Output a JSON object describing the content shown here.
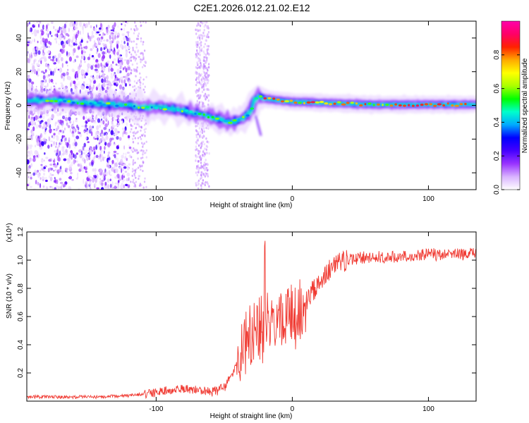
{
  "figure": {
    "title": "C2E1.2026.012.21.02.E12"
  },
  "chart_data": [
    {
      "type": "heatmap",
      "name": "spectrogram",
      "xlabel": "Height of straight line (km)",
      "ylabel": "Frequency (Hz)",
      "xlim": [
        -195,
        135
      ],
      "ylim": [
        -50,
        50
      ],
      "xticks": [
        -100,
        0,
        100
      ],
      "yticks": [
        -40,
        -20,
        0,
        20,
        40
      ],
      "grid": false,
      "signal_trace": {
        "x": [
          -195,
          -180,
          -170,
          -160,
          -150,
          -140,
          -130,
          -120,
          -110,
          -100,
          -90,
          -80,
          -70,
          -60,
          -50,
          -45,
          -40,
          -35,
          -30,
          -28,
          -25,
          -20,
          -10,
          0,
          10,
          20,
          40,
          60,
          80,
          100,
          120,
          135
        ],
        "freq_hz": [
          3,
          3,
          3,
          2,
          1.5,
          1,
          0.5,
          0,
          -1,
          -1,
          -2,
          -3,
          -5,
          -7,
          -9,
          -10,
          -9,
          -7,
          -3,
          3,
          5,
          4,
          3,
          2,
          2,
          1.5,
          1,
          0.5,
          0.5,
          0.5,
          0.5,
          0.5
        ]
      },
      "colorbar": {
        "label": "Normalized spectral amplitude",
        "range": [
          0.0,
          1.0
        ],
        "ticks": [
          0.0,
          0.2,
          0.4,
          0.6,
          0.8
        ],
        "tick_labels": [
          "0.0",
          "0.2",
          "0.4",
          "0.6",
          "0.8"
        ],
        "colormap": [
          "#ffffff",
          "#d9b3ff",
          "#9933ff",
          "#4400ff",
          "#0000ff",
          "#00aaff",
          "#00ffcc",
          "#00ff00",
          "#aaff00",
          "#ffff00",
          "#ffaa00",
          "#ff2200",
          "#ff0066",
          "#ff00aa"
        ]
      }
    },
    {
      "type": "line",
      "name": "snr",
      "xlabel": "Height of straight line (km)",
      "ylabel": "SNR (10 * v/v)",
      "scale_label": "(x10⁴)",
      "xlim": [
        -195,
        135
      ],
      "ylim": [
        0,
        1.2
      ],
      "xticks": [
        -100,
        0,
        100
      ],
      "yticks": [
        0.2,
        0.4,
        0.6,
        0.8,
        1.0,
        1.2
      ],
      "ytick_labels": [
        "0.2",
        "0.4",
        "0.6",
        "0.8",
        "1.0",
        "1.2"
      ],
      "grid": false,
      "series": [
        {
          "name": "SNR",
          "color": "#f03a32",
          "x": [
            -195,
            -180,
            -160,
            -140,
            -120,
            -110,
            -100,
            -90,
            -80,
            -70,
            -60,
            -55,
            -50,
            -45,
            -40,
            -35,
            -30,
            -25,
            -20,
            -15,
            -10,
            -5,
            0,
            5,
            10,
            15,
            20,
            25,
            30,
            35,
            40,
            50,
            60,
            70,
            80,
            90,
            100,
            110,
            120,
            135
          ],
          "y": [
            0.03,
            0.03,
            0.03,
            0.03,
            0.04,
            0.05,
            0.06,
            0.08,
            0.09,
            0.08,
            0.07,
            0.08,
            0.1,
            0.18,
            0.3,
            0.42,
            0.48,
            0.55,
            0.55,
            0.55,
            0.58,
            0.6,
            0.62,
            0.65,
            0.7,
            0.78,
            0.85,
            0.9,
            0.95,
            0.98,
            1.0,
            1.02,
            1.02,
            1.02,
            1.03,
            1.04,
            1.04,
            1.04,
            1.04,
            1.05
          ]
        }
      ]
    }
  ]
}
